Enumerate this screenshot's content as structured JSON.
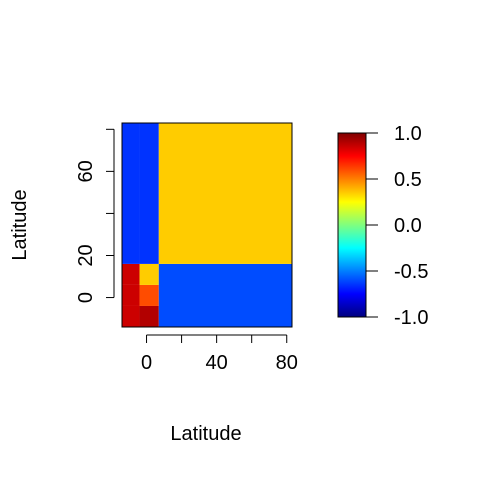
{
  "chart_data": {
    "type": "heatmap",
    "title": "",
    "xlabel": "Latitude",
    "ylabel": "Latitude",
    "xlim": [
      -14,
      83
    ],
    "ylim": [
      -14,
      83
    ],
    "x_ticks": [
      {
        "value": 0,
        "label": "0"
      },
      {
        "value": 20,
        "label": ""
      },
      {
        "value": 40,
        "label": "40"
      },
      {
        "value": 60,
        "label": ""
      },
      {
        "value": 80,
        "label": "80"
      }
    ],
    "y_ticks": [
      {
        "value": 0,
        "label": "0"
      },
      {
        "value": 20,
        "label": "20"
      },
      {
        "value": 40,
        "label": ""
      },
      {
        "value": 60,
        "label": "60"
      },
      {
        "value": 80,
        "label": ""
      }
    ],
    "colorbar": {
      "range": [
        -1.0,
        1.0
      ],
      "ticks": [
        {
          "value": 1.0,
          "label": "1.0"
        },
        {
          "value": 0.5,
          "label": "0.5"
        },
        {
          "value": 0.0,
          "label": "0.0"
        },
        {
          "value": -0.5,
          "label": "-0.5"
        },
        {
          "value": -1.0,
          "label": "-1.0"
        }
      ],
      "colormap": [
        "#00007f",
        "#0000ff",
        "#007fff",
        "#00ffff",
        "#7fff7f",
        "#ffff00",
        "#ff7f00",
        "#ff0000",
        "#7f0000"
      ]
    },
    "blocks": [
      {
        "x": [
          -14,
          -4
        ],
        "y": [
          -14,
          -4
        ],
        "value": 0.85
      },
      {
        "x": [
          -14,
          -4
        ],
        "y": [
          -4,
          6
        ],
        "value": 0.85
      },
      {
        "x": [
          -14,
          -4
        ],
        "y": [
          6,
          16
        ],
        "value": 0.85
      },
      {
        "x": [
          -4,
          7
        ],
        "y": [
          -14,
          -4
        ],
        "value": 0.9
      },
      {
        "x": [
          -4,
          7
        ],
        "y": [
          -4,
          6
        ],
        "value": 0.6
      },
      {
        "x": [
          -4,
          7
        ],
        "y": [
          6,
          16
        ],
        "value": 0.35
      },
      {
        "x": [
          -14,
          -4
        ],
        "y": [
          16,
          83
        ],
        "value": -0.65
      },
      {
        "x": [
          -4,
          7
        ],
        "y": [
          16,
          83
        ],
        "value": -0.65
      },
      {
        "x": [
          7,
          83
        ],
        "y": [
          -14,
          16
        ],
        "value": -0.6
      },
      {
        "x": [
          7,
          83
        ],
        "y": [
          16,
          83
        ],
        "value": 0.35
      }
    ],
    "grid": false,
    "legend": "colorbar-right"
  }
}
